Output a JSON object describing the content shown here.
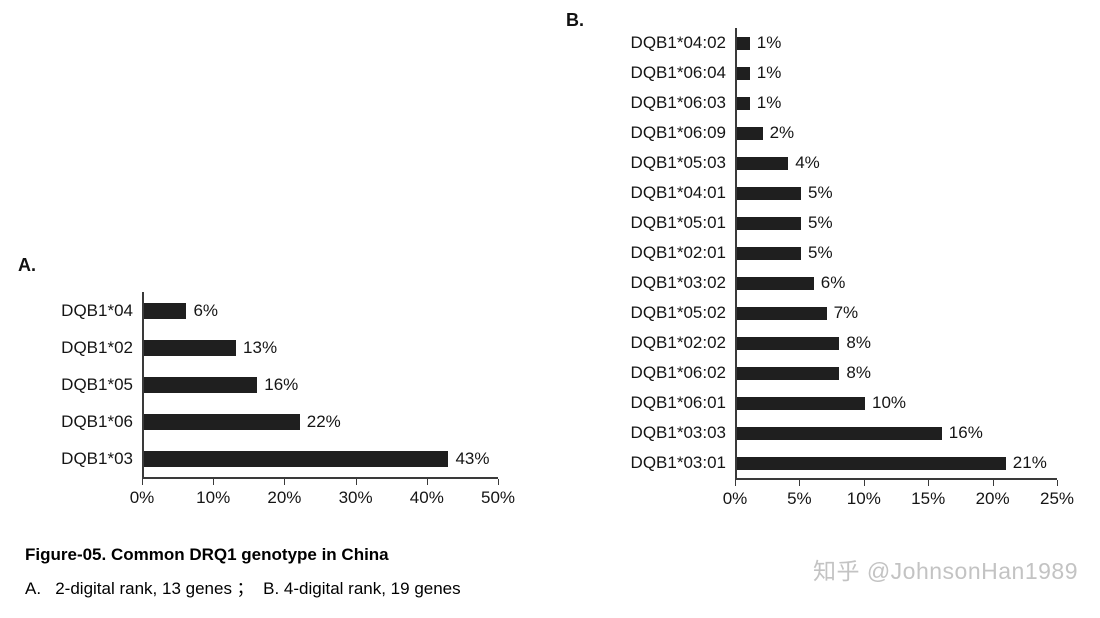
{
  "figure": {
    "panel_a_label": "A.",
    "panel_b_label": "B.",
    "caption_title": "Figure-05. Common DRQ1 genotype in China",
    "caption_sub": "A.   2-digital rank, 13 genes ；  B. 4-digital rank, 19 genes",
    "watermark": "知乎 @JohnsonHan1989"
  },
  "chart_data": [
    {
      "type": "bar",
      "orientation": "horizontal",
      "panel": "A",
      "title": "",
      "xlabel": "",
      "ylabel": "",
      "categories": [
        "DQB1*04",
        "DQB1*02",
        "DQB1*05",
        "DQB1*06",
        "DQB1*03"
      ],
      "values": [
        6,
        13,
        16,
        22,
        43
      ],
      "value_labels": [
        "6%",
        "13%",
        "16%",
        "22%",
        "43%"
      ],
      "xlim": [
        0,
        50
      ],
      "tick_values": [
        0,
        10,
        20,
        30,
        40,
        50
      ],
      "tick_labels": [
        "0%",
        "10%",
        "20%",
        "30%",
        "40%",
        "50%"
      ],
      "grid": false,
      "legend": false,
      "bar_color": "#1f1f1f"
    },
    {
      "type": "bar",
      "orientation": "horizontal",
      "panel": "B",
      "title": "",
      "xlabel": "",
      "ylabel": "",
      "categories": [
        "DQB1*04:02",
        "DQB1*06:04",
        "DQB1*06:03",
        "DQB1*06:09",
        "DQB1*05:03",
        "DQB1*04:01",
        "DQB1*05:01",
        "DQB1*02:01",
        "DQB1*03:02",
        "DQB1*05:02",
        "DQB1*02:02",
        "DQB1*06:02",
        "DQB1*06:01",
        "DQB1*03:03",
        "DQB1*03:01"
      ],
      "values": [
        1,
        1,
        1,
        2,
        4,
        5,
        5,
        5,
        6,
        7,
        8,
        8,
        10,
        16,
        21
      ],
      "value_labels": [
        "1%",
        "1%",
        "1%",
        "2%",
        "4%",
        "5%",
        "5%",
        "5%",
        "6%",
        "7%",
        "8%",
        "8%",
        "10%",
        "16%",
        "21%"
      ],
      "xlim": [
        0,
        25
      ],
      "tick_values": [
        0,
        5,
        10,
        15,
        20,
        25
      ],
      "tick_labels": [
        "0%",
        "5%",
        "10%",
        "15%",
        "20%",
        "25%"
      ],
      "grid": false,
      "legend": false,
      "bar_color": "#1f1f1f"
    }
  ]
}
